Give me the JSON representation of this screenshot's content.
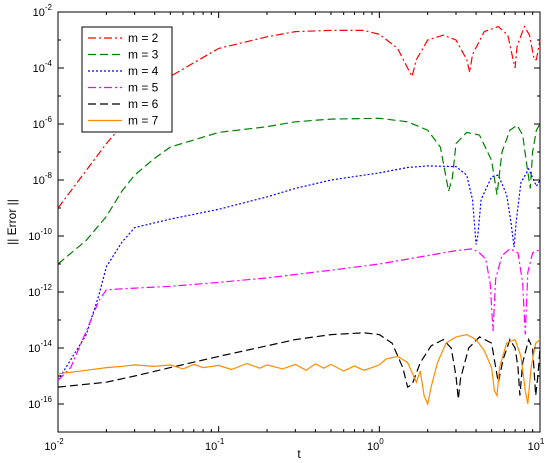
{
  "chart_data": {
    "type": "line",
    "title": "",
    "xlabel": "t",
    "ylabel": "|| Error ||",
    "x_scale": "log",
    "y_scale": "log",
    "xlim": [
      0.01,
      10
    ],
    "ylim": [
      1e-17,
      0.01
    ],
    "x_ticks": [
      {
        "value": 0.01,
        "base": "10",
        "exp": "-2"
      },
      {
        "value": 0.1,
        "base": "10",
        "exp": "-1"
      },
      {
        "value": 1,
        "base": "10",
        "exp": "0"
      },
      {
        "value": 10,
        "base": "10",
        "exp": "1"
      }
    ],
    "y_ticks": [
      {
        "value": 1e-16,
        "base": "10",
        "exp": "-16"
      },
      {
        "value": 1e-14,
        "base": "10",
        "exp": "-14"
      },
      {
        "value": 1e-12,
        "base": "10",
        "exp": "-12"
      },
      {
        "value": 1e-10,
        "base": "10",
        "exp": "-10"
      },
      {
        "value": 1e-08,
        "base": "10",
        "exp": "-8"
      },
      {
        "value": 1e-06,
        "base": "10",
        "exp": "-6"
      },
      {
        "value": 0.0001,
        "base": "10",
        "exp": "-4"
      },
      {
        "value": 0.01,
        "base": "10",
        "exp": "-2"
      }
    ],
    "grid": false,
    "legend_position": "top-left",
    "series": [
      {
        "name": "m = 2",
        "color": "#ff0000",
        "dash": "dashdot",
        "points": [
          [
            0.01,
            1e-09
          ],
          [
            0.02,
            2e-07
          ],
          [
            0.03,
            3e-06
          ],
          [
            0.05,
            5e-05
          ],
          [
            0.1,
            0.0005
          ],
          [
            0.2,
            0.0013
          ],
          [
            0.3,
            0.002
          ],
          [
            0.5,
            0.0022
          ],
          [
            0.8,
            0.0022
          ],
          [
            1.0,
            0.0016
          ],
          [
            1.3,
            0.0005
          ],
          [
            1.5,
            0.0001
          ],
          [
            1.6,
            5e-05
          ],
          [
            1.7,
            0.0002
          ],
          [
            2.0,
            0.001
          ],
          [
            2.5,
            0.0015
          ],
          [
            3.0,
            0.001
          ],
          [
            3.5,
            0.0002
          ],
          [
            3.65,
            7e-05
          ],
          [
            3.8,
            0.0003
          ],
          [
            4.5,
            0.002
          ],
          [
            5.5,
            0.003
          ],
          [
            6.3,
            0.0015
          ],
          [
            6.8,
            0.0002
          ],
          [
            7.0,
            0.0001
          ],
          [
            7.2,
            0.0006
          ],
          [
            8.0,
            0.003
          ],
          [
            8.6,
            0.0015
          ],
          [
            9.2,
            0.0002
          ],
          [
            9.5,
            0.0002
          ],
          [
            10,
            0.001
          ]
        ]
      },
      {
        "name": "m = 3",
        "color": "#008000",
        "dash": "dashed",
        "points": [
          [
            0.01,
            1e-11
          ],
          [
            0.015,
            7e-11
          ],
          [
            0.02,
            5e-10
          ],
          [
            0.025,
            4e-09
          ],
          [
            0.03,
            1.5e-08
          ],
          [
            0.04,
            6e-08
          ],
          [
            0.05,
            1.5e-07
          ],
          [
            0.1,
            5e-07
          ],
          [
            0.2,
            8e-07
          ],
          [
            0.3,
            1.2e-06
          ],
          [
            0.5,
            1.5e-06
          ],
          [
            1.0,
            1.6e-06
          ],
          [
            1.5,
            1.2e-06
          ],
          [
            2.0,
            6e-07
          ],
          [
            2.4,
            1.5e-07
          ],
          [
            2.7,
            4e-09
          ],
          [
            2.85,
            1.2e-08
          ],
          [
            3.0,
            2e-07
          ],
          [
            3.5,
            5e-07
          ],
          [
            4.2,
            4e-07
          ],
          [
            5.0,
            5e-08
          ],
          [
            5.4,
            3e-09
          ],
          [
            5.8,
            1e-07
          ],
          [
            6.5,
            6e-07
          ],
          [
            7.2,
            9e-07
          ],
          [
            7.8,
            4e-07
          ],
          [
            8.3,
            3e-08
          ],
          [
            8.7,
            5e-09
          ],
          [
            9.0,
            1e-07
          ],
          [
            9.5,
            6e-07
          ],
          [
            10,
            1e-06
          ]
        ]
      },
      {
        "name": "m = 4",
        "color": "#0000ff",
        "dash": "dotted",
        "points": [
          [
            0.01,
            7e-16
          ],
          [
            0.015,
            3e-14
          ],
          [
            0.018,
            8e-13
          ],
          [
            0.02,
            8e-12
          ],
          [
            0.025,
            6e-11
          ],
          [
            0.03,
            2e-10
          ],
          [
            0.05,
            4e-10
          ],
          [
            0.1,
            9e-10
          ],
          [
            0.2,
            2.5e-09
          ],
          [
            0.3,
            5e-09
          ],
          [
            0.5,
            1e-08
          ],
          [
            1.0,
            1.8e-08
          ],
          [
            1.5,
            2.8e-08
          ],
          [
            2.0,
            3.2e-08
          ],
          [
            3.0,
            3e-08
          ],
          [
            3.5,
            1.5e-08
          ],
          [
            3.8,
            2e-09
          ],
          [
            4.0,
            5e-11
          ],
          [
            4.1,
            1e-10
          ],
          [
            4.3,
            2e-09
          ],
          [
            5.0,
            1.3e-08
          ],
          [
            5.5,
            1.5e-08
          ],
          [
            6.2,
            3e-09
          ],
          [
            6.6,
            3e-10
          ],
          [
            6.9,
            4e-11
          ],
          [
            7.1,
            3e-10
          ],
          [
            7.6,
            8e-09
          ],
          [
            8.5,
            2.5e-08
          ],
          [
            9.0,
            1.2e-08
          ],
          [
            9.5,
            6e-09
          ],
          [
            10,
            1e-08
          ]
        ]
      },
      {
        "name": "m = 5",
        "color": "#ff00ff",
        "dash": "dashdot",
        "points": [
          [
            0.01,
            7e-16
          ],
          [
            0.012,
            2e-15
          ],
          [
            0.015,
            4e-14
          ],
          [
            0.018,
            5e-13
          ],
          [
            0.02,
            1.2e-12
          ],
          [
            0.025,
            1.3e-12
          ],
          [
            0.05,
            1.6e-12
          ],
          [
            0.1,
            2.2e-12
          ],
          [
            0.2,
            3.2e-12
          ],
          [
            0.3,
            4.2e-12
          ],
          [
            0.5,
            6e-12
          ],
          [
            1.0,
            1e-11
          ],
          [
            1.5,
            1.5e-11
          ],
          [
            2.0,
            2e-11
          ],
          [
            3.0,
            3e-11
          ],
          [
            3.8,
            3.5e-11
          ],
          [
            4.2,
            2.5e-11
          ],
          [
            4.6,
            1.5e-11
          ],
          [
            4.9,
            2e-12
          ],
          [
            5.1,
            4e-14
          ],
          [
            5.3,
            3e-12
          ],
          [
            5.8,
            2e-11
          ],
          [
            6.5,
            3.5e-11
          ],
          [
            7.3,
            2.5e-11
          ],
          [
            7.8,
            2e-12
          ],
          [
            8.1,
            3e-14
          ],
          [
            8.4,
            5e-12
          ],
          [
            9.0,
            2.5e-11
          ],
          [
            9.5,
            3e-11
          ],
          [
            10,
            3e-11
          ]
        ]
      },
      {
        "name": "m = 6",
        "color": "#000000",
        "dash": "dashed",
        "points": [
          [
            0.01,
            4e-16
          ],
          [
            0.02,
            6e-16
          ],
          [
            0.03,
            1e-15
          ],
          [
            0.05,
            2e-15
          ],
          [
            0.1,
            5e-15
          ],
          [
            0.2,
            1.2e-14
          ],
          [
            0.3,
            2e-14
          ],
          [
            0.5,
            3e-14
          ],
          [
            0.8,
            3.5e-14
          ],
          [
            1.0,
            3e-14
          ],
          [
            1.2,
            1.5e-14
          ],
          [
            1.4,
            2e-15
          ],
          [
            1.5,
            4e-16
          ],
          [
            1.6,
            5e-16
          ],
          [
            1.8,
            3e-15
          ],
          [
            2.1,
            1.2e-14
          ],
          [
            2.5,
            2e-14
          ],
          [
            2.8,
            1e-14
          ],
          [
            3.0,
            1e-15
          ],
          [
            3.1,
            1.5e-16
          ],
          [
            3.2,
            8e-16
          ],
          [
            3.6,
            1e-14
          ],
          [
            4.2,
            2.5e-14
          ],
          [
            5.0,
            1.5e-14
          ],
          [
            5.3,
            2e-15
          ],
          [
            5.5,
            6e-16
          ],
          [
            5.9,
            4e-15
          ],
          [
            6.5,
            2e-14
          ],
          [
            7.0,
            1e-14
          ],
          [
            7.3,
            2e-15
          ],
          [
            7.5,
            2e-16
          ],
          [
            7.8,
            3e-15
          ],
          [
            8.5,
            2e-14
          ],
          [
            9.0,
            1e-14
          ],
          [
            9.4,
            2e-16
          ],
          [
            9.7,
            1e-15
          ],
          [
            10,
            1e-14
          ]
        ]
      },
      {
        "name": "m = 7",
        "color": "#ff8c00",
        "dash": "solid",
        "points": [
          [
            0.01,
            1.2e-15
          ],
          [
            0.015,
            1.6e-15
          ],
          [
            0.02,
            2e-15
          ],
          [
            0.025,
            2.2e-15
          ],
          [
            0.03,
            2.5e-15
          ],
          [
            0.04,
            2.2e-15
          ],
          [
            0.05,
            2.5e-15
          ],
          [
            0.06,
            1.8e-15
          ],
          [
            0.07,
            2.6e-15
          ],
          [
            0.08,
            2e-15
          ],
          [
            0.1,
            2.4e-15
          ],
          [
            0.12,
            1.7e-15
          ],
          [
            0.15,
            2.8e-15
          ],
          [
            0.18,
            1.9e-15
          ],
          [
            0.2,
            2.5e-15
          ],
          [
            0.25,
            1.8e-15
          ],
          [
            0.3,
            2.6e-15
          ],
          [
            0.35,
            1.6e-15
          ],
          [
            0.4,
            2.7e-15
          ],
          [
            0.45,
            1.9e-15
          ],
          [
            0.5,
            2.6e-15
          ],
          [
            0.6,
            1.5e-15
          ],
          [
            0.7,
            2.3e-15
          ],
          [
            0.8,
            1.6e-15
          ],
          [
            0.9,
            2e-15
          ],
          [
            1.0,
            2.5e-15
          ],
          [
            1.1,
            4e-15
          ],
          [
            1.3,
            5e-15
          ],
          [
            1.5,
            3e-15
          ],
          [
            1.7,
            6e-16
          ],
          [
            1.8,
            1.5e-15
          ],
          [
            1.9,
            2e-16
          ],
          [
            2.0,
            1e-16
          ],
          [
            2.1,
            4e-16
          ],
          [
            2.3,
            3e-15
          ],
          [
            2.6,
            1.5e-14
          ],
          [
            3.0,
            2.5e-14
          ],
          [
            3.5,
            3e-14
          ],
          [
            4.0,
            2e-14
          ],
          [
            4.5,
            8e-15
          ],
          [
            5.0,
            2e-15
          ],
          [
            5.2,
            3e-16
          ],
          [
            5.4,
            2e-16
          ],
          [
            5.6,
            2e-15
          ],
          [
            6.2,
            1.5e-14
          ],
          [
            7.0,
            2e-14
          ],
          [
            7.6,
            5e-15
          ],
          [
            8.1,
            3e-16
          ],
          [
            8.4,
            1e-16
          ],
          [
            8.8,
            2e-15
          ],
          [
            9.4,
            1.5e-14
          ],
          [
            10,
            2e-14
          ]
        ]
      }
    ]
  }
}
